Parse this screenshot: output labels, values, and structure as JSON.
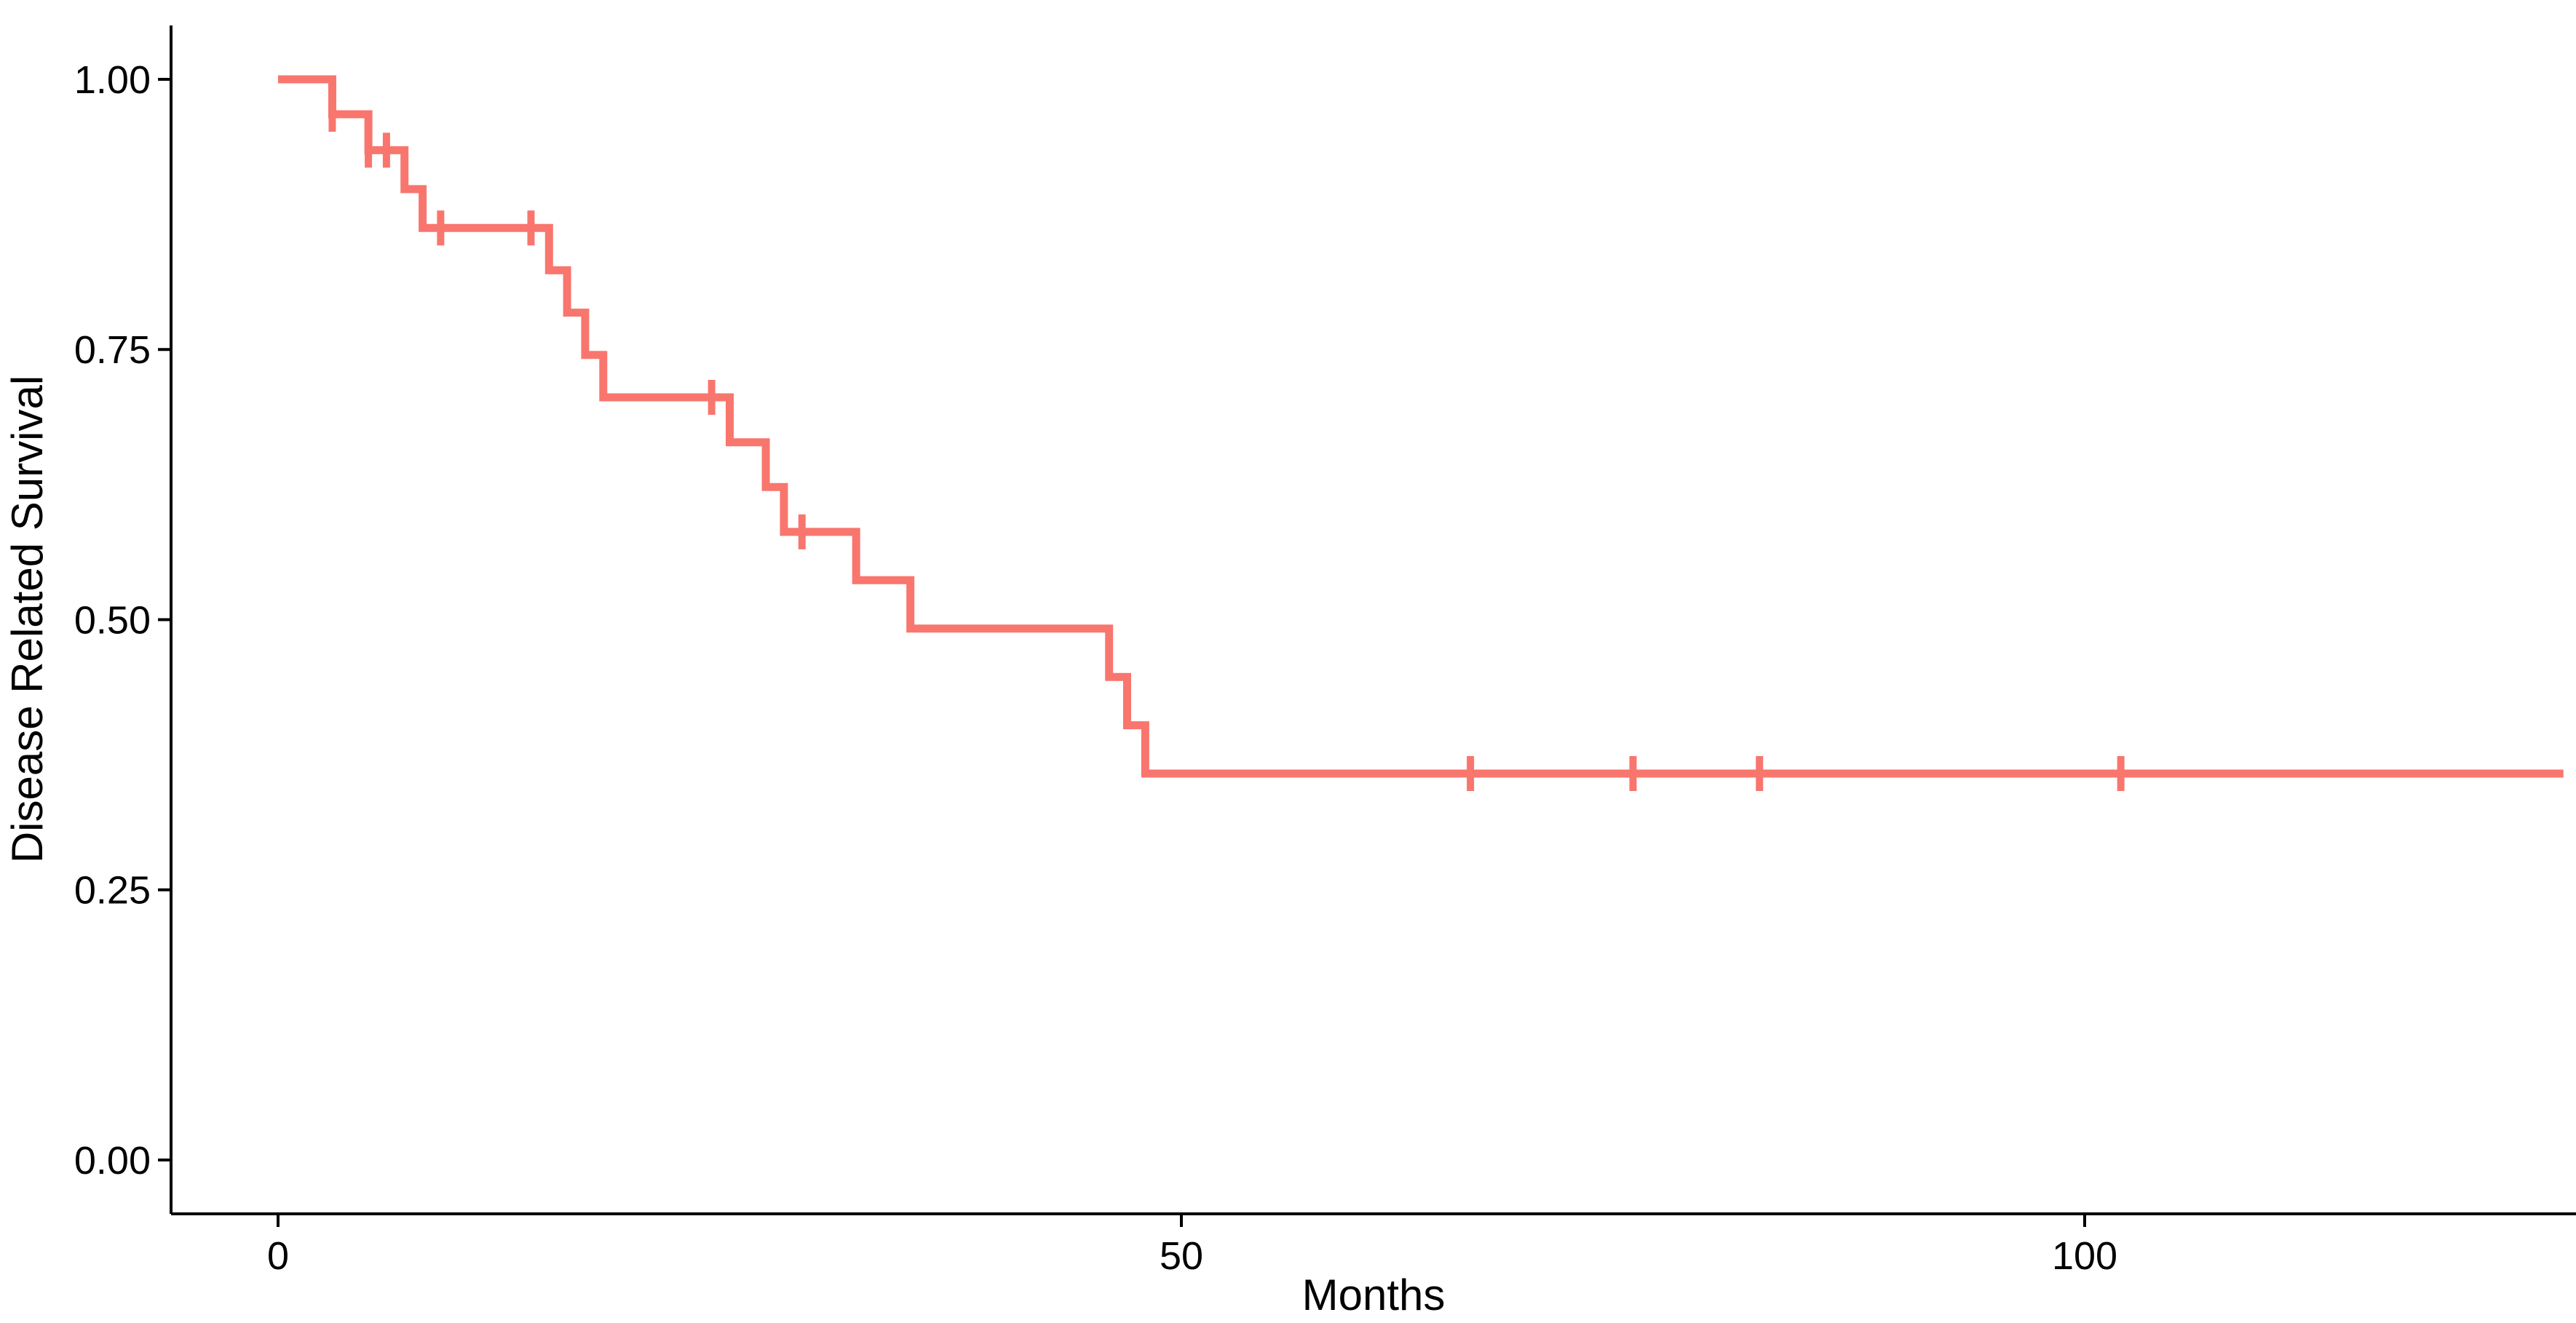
{
  "figure": {
    "background": "#FFFFFF"
  },
  "axes": {
    "line_color": "#000000",
    "text_color": "#000000"
  },
  "chart_data": {
    "type": "line",
    "subtype": "kaplan_meier_step_curve",
    "title": "",
    "xlabel": "Months",
    "ylabel": "Disease Related Survival",
    "xlim": [
      0,
      127
    ],
    "ylim": [
      0.0,
      1.0
    ],
    "grid": false,
    "legend": false,
    "x_ticks": [
      {
        "value": 0,
        "label": "0"
      },
      {
        "value": 50,
        "label": "50"
      },
      {
        "value": 100,
        "label": "100"
      }
    ],
    "y_ticks": [
      {
        "value": 0.0,
        "label": "0.00"
      },
      {
        "value": 0.25,
        "label": "0.25"
      },
      {
        "value": 0.5,
        "label": "0.50"
      },
      {
        "value": 0.75,
        "label": "0.75"
      },
      {
        "value": 1.0,
        "label": "1.00"
      }
    ],
    "series": [
      {
        "name": "Disease Related Survival",
        "color": "#F8766D",
        "start": {
          "time": 0,
          "survival": 1.0
        },
        "events": [
          {
            "time": 3,
            "survival": 0.9677
          },
          {
            "time": 5,
            "survival": 0.9344
          },
          {
            "time": 7,
            "survival": 0.8984
          },
          {
            "time": 8,
            "survival": 0.8625
          },
          {
            "time": 15,
            "survival": 0.8233
          },
          {
            "time": 16,
            "survival": 0.7841
          },
          {
            "time": 17,
            "survival": 0.7449
          },
          {
            "time": 18,
            "survival": 0.7057
          },
          {
            "time": 25,
            "survival": 0.6642
          },
          {
            "time": 27,
            "survival": 0.6227
          },
          {
            "time": 28,
            "survival": 0.5812
          },
          {
            "time": 32,
            "survival": 0.5365
          },
          {
            "time": 35,
            "survival": 0.4917
          },
          {
            "time": 46,
            "survival": 0.447
          },
          {
            "time": 47,
            "survival": 0.4023
          },
          {
            "time": 48,
            "survival": 0.3576
          }
        ],
        "censor_marks": [
          {
            "time": 3,
            "survival": 0.9677
          },
          {
            "time": 5,
            "survival": 0.9344
          },
          {
            "time": 6,
            "survival": 0.9344
          },
          {
            "time": 9,
            "survival": 0.8625
          },
          {
            "time": 14,
            "survival": 0.8625
          },
          {
            "time": 24,
            "survival": 0.7057
          },
          {
            "time": 29,
            "survival": 0.5812
          },
          {
            "time": 66,
            "survival": 0.3576
          },
          {
            "time": 75,
            "survival": 0.3576
          },
          {
            "time": 82,
            "survival": 0.3576
          },
          {
            "time": 102,
            "survival": 0.3576
          }
        ],
        "follow_up_end_time": 126.5
      }
    ]
  }
}
